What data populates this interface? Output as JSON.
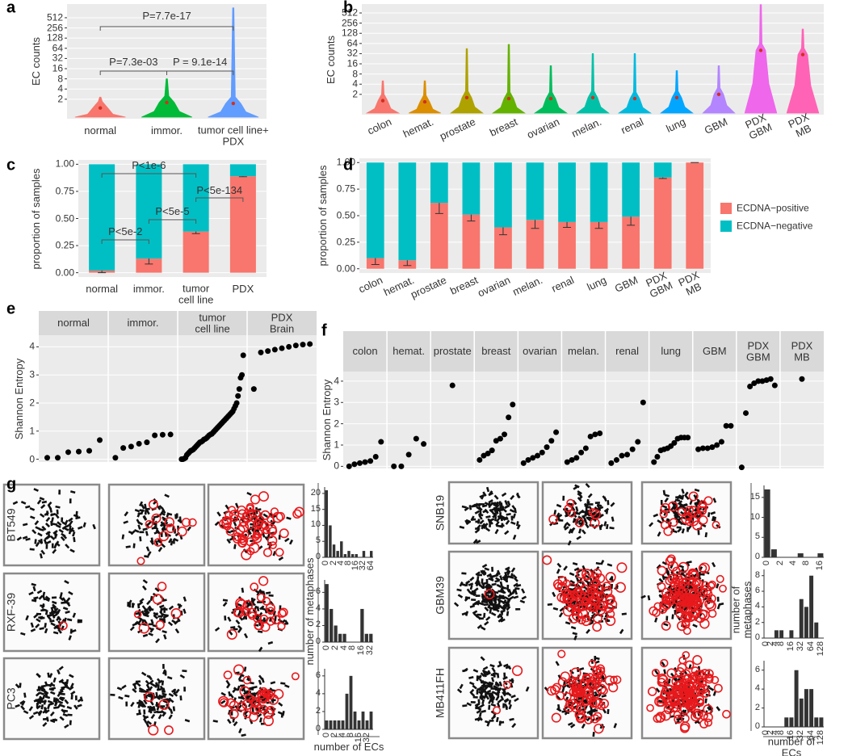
{
  "panel_labels": [
    "a",
    "b",
    "c",
    "d",
    "e",
    "f",
    "g"
  ],
  "micrographs": {
    "rows": [
      "BT549",
      "RXF-39",
      "PC3",
      "SNB19",
      "GBM39",
      "MB411FH"
    ]
  },
  "chart_data": [
    {
      "type": "violin",
      "ylabel": "EC counts",
      "yscale": "log",
      "ylim": [
        0.53,
        1300
      ],
      "yticks": [
        2,
        4,
        8,
        16,
        32,
        64,
        128,
        256,
        512
      ],
      "categories": [
        "normal",
        "immor.",
        "tumor cell line+\nPDX"
      ],
      "colors": [
        "#f8766d",
        "#00ba38",
        "#619cff"
      ],
      "median": [
        1.1,
        1.6,
        1.5
      ],
      "max": [
        2.3,
        8,
        1000
      ],
      "annotations": [
        "P=7.7e-17",
        "P=7.3e-03",
        "P = 9.1e-14"
      ]
    },
    {
      "type": "violin",
      "ylabel": "EC counts",
      "yscale": "log",
      "ylim": [
        0.5,
        940
      ],
      "yticks": [
        2,
        4,
        8,
        16,
        32,
        64,
        128,
        256,
        512
      ],
      "categories": [
        "colon",
        "hemat.",
        "prostate",
        "breast",
        "ovarian",
        "melan.",
        "renal",
        "lung",
        "GBM",
        "PDX\nGBM",
        "PDX\nMB"
      ],
      "colors": [
        "#f8766d",
        "#db8e00",
        "#aea200",
        "#64b200",
        "#00bd5c",
        "#00c1a7",
        "#00bade",
        "#00a6ff",
        "#b385ff",
        "#ef67eb",
        "#ff63b6"
      ],
      "median": [
        1.3,
        1.2,
        1.6,
        1.5,
        1.5,
        1.6,
        1.5,
        1.6,
        2.0,
        40,
        30
      ],
      "max": [
        5,
        5,
        45,
        60,
        14,
        32,
        32,
        10,
        14,
        900,
        170
      ]
    },
    {
      "type": "stacked_bar",
      "ylabel": "proportion of samples",
      "ylim": [
        -0.04,
        1.04
      ],
      "yticks": [
        {
          "value": 0,
          "label": "0.00"
        },
        {
          "value": 0.25,
          "label": "0.25"
        },
        {
          "value": 0.5,
          "label": "0.50"
        },
        {
          "value": 0.75,
          "label": "0.75"
        },
        {
          "value": 1,
          "label": "1.00"
        }
      ],
      "categories": [
        "normal",
        "immor.",
        "tumor\ncell line",
        "PDX"
      ],
      "series": [
        {
          "color": "#f8766d",
          "values": [
            0.02,
            0.13,
            0.38,
            0.89
          ],
          "errors": [
            0.02,
            0.05,
            0.02,
            0.005
          ]
        },
        {
          "color": "#00bfc4",
          "values": [
            0.98,
            0.87,
            0.62,
            0.11
          ]
        }
      ],
      "annotations": [
        "P<1e-6",
        "P<5e-134",
        "P<5e-5",
        "P<5e-2"
      ]
    },
    {
      "type": "stacked_bar",
      "ylabel": "proportion of samples",
      "ylim": [
        -0.04,
        1.04
      ],
      "legend": "right",
      "yticks": [
        {
          "value": 0,
          "label": "0.00"
        },
        {
          "value": 0.25,
          "label": "0.25"
        },
        {
          "value": 0.5,
          "label": "0.50"
        },
        {
          "value": 0.75,
          "label": "0.75"
        },
        {
          "value": 1,
          "label": "1.00"
        }
      ],
      "categories": [
        "colon",
        "hemat.",
        "prostate",
        "breast",
        "ovarian",
        "melan.",
        "renal",
        "lung",
        "GBM",
        "PDX\nGBM",
        "PDX\nMB"
      ],
      "series": [
        {
          "name": "ECDNA−positive",
          "color": "#f8766d",
          "values": [
            0.1,
            0.08,
            0.62,
            0.51,
            0.39,
            0.46,
            0.44,
            0.44,
            0.49,
            0.86,
            1.0
          ],
          "errors": [
            0.06,
            0.05,
            0.1,
            0.06,
            0.07,
            0.08,
            0.05,
            0.06,
            0.08,
            0.01,
            0.0
          ]
        },
        {
          "name": "ECDNA−negative",
          "color": "#00bfc4",
          "values": [
            0.9,
            0.92,
            0.38,
            0.49,
            0.61,
            0.54,
            0.56,
            0.56,
            0.51,
            0.14,
            0.0
          ]
        }
      ]
    },
    {
      "type": "dot",
      "ylabel": "Shannon Entropy",
      "ylim": [
        -0.1,
        4.3
      ],
      "yticks": [
        0,
        1,
        2,
        3,
        4
      ],
      "facets": [
        {
          "name": "normal",
          "values": [
            0.05,
            0.05,
            0.25,
            0.27,
            0.3,
            0.68
          ]
        },
        {
          "name": "immor.",
          "values": [
            0.05,
            0.4,
            0.45,
            0.55,
            0.6,
            0.85,
            0.87,
            0.88
          ]
        },
        {
          "name": "tumor\ncell line",
          "values": [
            0,
            0,
            0.02,
            0.05,
            0.15,
            0.2,
            0.25,
            0.3,
            0.32,
            0.35,
            0.4,
            0.45,
            0.5,
            0.55,
            0.6,
            0.62,
            0.65,
            0.7,
            0.72,
            0.75,
            0.8,
            0.85,
            0.88,
            0.9,
            0.95,
            1.0,
            1.05,
            1.1,
            1.15,
            1.2,
            1.25,
            1.3,
            1.35,
            1.4,
            1.45,
            1.5,
            1.55,
            1.6,
            1.65,
            1.7,
            1.8,
            1.9,
            2.0,
            2.25,
            2.5,
            2.9,
            3.0,
            3.7
          ]
        },
        {
          "name": "PDX\nBrain",
          "values": [
            2.5,
            3.8,
            3.85,
            3.9,
            3.95,
            4.0,
            4.05,
            4.08,
            4.1
          ]
        }
      ]
    },
    {
      "type": "dot",
      "ylabel": "Shannon Entropy",
      "ylim": [
        -0.1,
        4.3
      ],
      "yticks": [
        0,
        1,
        2,
        3,
        4
      ],
      "facets": [
        {
          "name": "colon",
          "values": [
            0.0,
            0.1,
            0.15,
            0.2,
            0.25,
            0.45,
            1.15
          ]
        },
        {
          "name": "hemat.",
          "values": [
            0.0,
            0.0,
            0.55,
            1.3,
            1.05
          ]
        },
        {
          "name": "prostate",
          "values": [
            3.8
          ]
        },
        {
          "name": "breast",
          "values": [
            0.3,
            0.5,
            0.6,
            0.75,
            1.2,
            1.3,
            1.5,
            2.3,
            2.9
          ]
        },
        {
          "name": "ovarian",
          "values": [
            0.15,
            0.3,
            0.4,
            0.5,
            0.65,
            0.9,
            1.2,
            1.6
          ]
        },
        {
          "name": "melan.",
          "values": [
            0.2,
            0.3,
            0.4,
            0.65,
            0.85,
            1.4,
            1.5,
            1.55
          ]
        },
        {
          "name": "renal",
          "values": [
            0.15,
            0.3,
            0.5,
            0.55,
            0.8,
            1.15,
            3.0
          ]
        },
        {
          "name": "lung",
          "values": [
            0.2,
            0.45,
            0.75,
            0.8,
            0.85,
            0.95,
            1.1,
            1.3,
            1.35,
            1.35,
            1.35
          ]
        },
        {
          "name": "GBM",
          "values": [
            0.8,
            0.85,
            0.85,
            0.9,
            1.0,
            1.15,
            1.9,
            1.9
          ]
        },
        {
          "name": "PDX\nGBM",
          "values": [
            -0.05,
            2.5,
            3.75,
            3.9,
            4.0,
            4.0,
            4.05,
            4.1,
            3.8
          ]
        },
        {
          "name": "PDX\nMB",
          "values": [
            4.1
          ]
        }
      ]
    },
    {
      "type": "histogram",
      "ylabel": "number of metaphases",
      "xlabel": "number of ECs",
      "color": "#333333",
      "ylim": [
        0,
        22
      ],
      "yticks": [
        0,
        5,
        10,
        15,
        20
      ],
      "categories": [
        "0",
        null,
        "2",
        null,
        "4",
        null,
        "8",
        null,
        "16",
        null,
        "32",
        null,
        "64"
      ],
      "values": [
        21,
        10,
        4,
        2,
        5,
        1,
        2,
        1,
        1,
        0,
        2,
        0,
        2
      ]
    },
    {
      "type": "histogram",
      "color": "#333333",
      "ylim": [
        0,
        7.5
      ],
      "yticks": [
        0,
        2,
        4,
        6
      ],
      "categories": [
        "0",
        null,
        "2",
        null,
        "4",
        null,
        "8",
        null,
        "16",
        null,
        "32"
      ],
      "values": [
        7,
        4,
        2,
        1,
        1,
        0,
        0,
        0,
        4,
        1,
        1
      ]
    },
    {
      "type": "histogram",
      "color": "#333333",
      "ylim": [
        0,
        6.8
      ],
      "yticks": [
        0,
        2,
        4,
        6
      ],
      "categories": [
        "0",
        null,
        "2",
        null,
        "4",
        null,
        "8",
        null,
        "16",
        null,
        "32",
        null
      ],
      "values": [
        1,
        1,
        1,
        1,
        1,
        4,
        6,
        2,
        1,
        2,
        1,
        2
      ]
    },
    {
      "type": "histogram",
      "ylabel": "number of metaphases",
      "xlabel": "number of ECs",
      "color": "#333333",
      "ylim": [
        0,
        18
      ],
      "yticks": [
        0,
        5,
        10,
        15
      ],
      "categories": [
        "0",
        null,
        "2",
        null,
        "4",
        null,
        "8",
        null,
        "16"
      ],
      "values": [
        17,
        2,
        0,
        0,
        0,
        1,
        0,
        0,
        1
      ]
    },
    {
      "type": "histogram",
      "color": "#333333",
      "ylim": [
        0,
        8.8
      ],
      "yticks": [
        0,
        2,
        4,
        6,
        8
      ],
      "categories": [
        "0",
        "2",
        "4",
        "8",
        null,
        "16",
        null,
        "32",
        null,
        "64",
        null,
        "128"
      ],
      "values": [
        0,
        0,
        1,
        1,
        0,
        1,
        0,
        5,
        4,
        8,
        2,
        0
      ]
    },
    {
      "type": "histogram",
      "color": "#333333",
      "ylim": [
        0,
        7
      ],
      "yticks": [
        0,
        2,
        4,
        6
      ],
      "categories": [
        "0",
        "2",
        "4",
        "8",
        null,
        "16",
        null,
        "32",
        null,
        "64",
        null,
        "128"
      ],
      "values": [
        0,
        0,
        0,
        0,
        1,
        1,
        6,
        3,
        4,
        4,
        1,
        1
      ]
    }
  ]
}
